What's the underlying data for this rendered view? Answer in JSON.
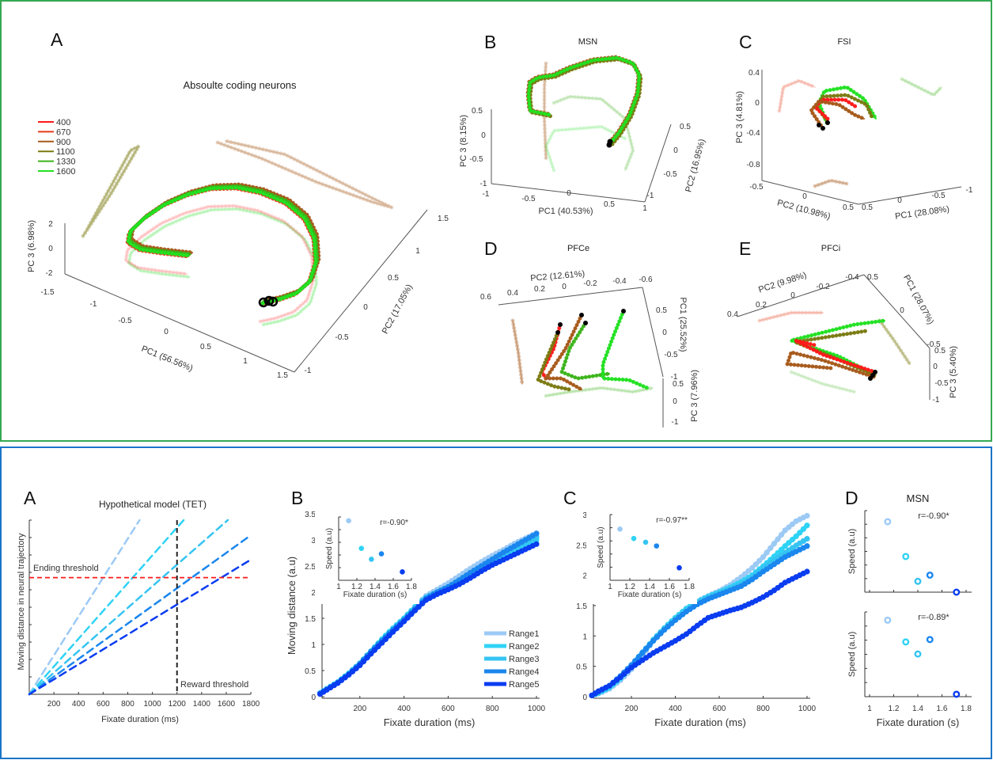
{
  "chart_data": [
    {
      "panel_label": "A",
      "type": "line",
      "title": "Absoulte coding neurons",
      "xlabel": "PC1 (56.56%)",
      "ylabel": "PC2 (17.05%)",
      "zlabel": "PC 3 (6.98%)",
      "x_ticks": [
        "-1.5",
        "-1",
        "-0.5",
        "0",
        "0.5",
        "1",
        "1.5"
      ],
      "y_ticks": [
        "-1",
        "-0.5",
        "0",
        "0.5",
        "1",
        "1.5"
      ],
      "z_ticks": [
        "2",
        "0",
        "-2"
      ],
      "legend": [
        "400",
        "670",
        "900",
        "1100",
        "1330",
        "1600"
      ],
      "legend_placement": "top-left",
      "series_colors": [
        "#ff1a1a",
        "#e63a1a",
        "#a65a1a",
        "#7a7a12",
        "#3cb31a",
        "#22e022"
      ]
    },
    {
      "panel_label": "B",
      "type": "line",
      "title": "MSN",
      "xlabel": "PC1 (40.53%)",
      "ylabel": "PC2 (16.95%)",
      "zlabel": "PC 3 (8.15%)",
      "x_ticks": [
        "-1",
        "-0.5",
        "0",
        "0.5",
        "1"
      ],
      "y_ticks": [
        "0.5",
        "0",
        "-0.5",
        "-1"
      ],
      "z_ticks": [
        "0.5",
        "0",
        "-0.5",
        "-1"
      ]
    },
    {
      "panel_label": "C",
      "type": "line",
      "title": "FSI",
      "xlabel": "PC1 (28.08%)",
      "ylabel": "PC2 (10.98%)",
      "zlabel": "PC 3 (4.81%)",
      "x_ticks": [
        "0.5",
        "0",
        "-0.5",
        "-1"
      ],
      "y_ticks": [
        "-0.5",
        "0",
        "0.5"
      ],
      "z_ticks": [
        "0.4",
        "0",
        "-0.4",
        "-0.8"
      ]
    },
    {
      "panel_label": "D",
      "type": "line",
      "title": "PFCe",
      "xlabel": "PC1 (25.52%)",
      "ylabel": "PC2 (12.61%)",
      "zlabel": "PC 3 (7.96%)",
      "x_ticks": [
        "0.5",
        "0",
        "-0.5",
        "-1"
      ],
      "y_ticks": [
        "0.6",
        "0.4",
        "0.2",
        "0",
        "-0.2",
        "-0.4",
        "-0.6"
      ],
      "z_ticks": [
        "0.5",
        "0",
        "-1"
      ]
    },
    {
      "panel_label": "E",
      "type": "line",
      "title": "PFCi",
      "xlabel": "PC1 (28.07%)",
      "ylabel": "PC2 (9.98%)",
      "zlabel": "PC 3 (5.40%)",
      "x_ticks": [
        "0.5",
        "0",
        "-0.5"
      ],
      "y_ticks": [
        "0.4",
        "0.2",
        "0",
        "-0.2",
        "-0.4"
      ],
      "z_ticks": [
        "0.5",
        "0",
        "-0.5",
        "-1"
      ]
    },
    {
      "panel_label": "A",
      "type": "line",
      "title": "Hypothetical model (TET)",
      "xlabel": "Fixate duration (ms)",
      "ylabel": "Moving distance in neural trajectory",
      "xlim": [
        0,
        1800
      ],
      "x_ticks": [
        200,
        400,
        600,
        800,
        1000,
        1200,
        1400,
        1600,
        1800
      ],
      "ending_threshold_label": "Ending threshold",
      "reward_threshold_label": "Reward threshold",
      "reward_threshold_ms": 1200,
      "threshold_crossing_ms": [
        600,
        840,
        1080,
        1320,
        1560
      ],
      "line_colors": [
        "#9ccaf5",
        "#2fd3f5",
        "#35c4f2",
        "#1a86ee",
        "#0a3cf0"
      ],
      "threshold_color": "#ff1a1a"
    },
    {
      "panel_label": "B",
      "type": "line",
      "xlabel": "Fixate duration (ms)",
      "ylabel": "Moving distance (a.u)",
      "xlim": [
        20,
        1000
      ],
      "ylim": [
        0,
        3.5
      ],
      "x_ticks": [
        200,
        400,
        600,
        800,
        1000
      ],
      "y_ticks": [
        0,
        0.5,
        1,
        1.5,
        2,
        2.5,
        3,
        3.5
      ],
      "legend_placement": "bottom-right",
      "x": [
        20,
        50,
        100,
        150,
        200,
        250,
        300,
        350,
        400,
        450,
        500,
        550,
        600,
        650,
        700,
        750,
        800,
        850,
        900,
        950,
        1000
      ],
      "series": [
        {
          "name": "Range1",
          "color": "#9ccaf5",
          "values": [
            0.07,
            0.15,
            0.28,
            0.44,
            0.63,
            0.86,
            1.08,
            1.29,
            1.5,
            1.72,
            1.93,
            2.05,
            2.17,
            2.31,
            2.45,
            2.58,
            2.7,
            2.81,
            2.93,
            3.03,
            3.13
          ]
        },
        {
          "name": "Range2",
          "color": "#2fd3f5",
          "values": [
            0.07,
            0.15,
            0.28,
            0.45,
            0.64,
            0.87,
            1.1,
            1.31,
            1.5,
            1.72,
            1.9,
            2.0,
            2.1,
            2.22,
            2.36,
            2.48,
            2.6,
            2.71,
            2.82,
            2.92,
            3.0
          ]
        },
        {
          "name": "Range3",
          "color": "#35c4f2",
          "values": [
            0.07,
            0.14,
            0.27,
            0.44,
            0.63,
            0.85,
            1.07,
            1.28,
            1.48,
            1.7,
            1.9,
            2.0,
            2.1,
            2.23,
            2.37,
            2.5,
            2.62,
            2.74,
            2.85,
            2.95,
            3.05
          ]
        },
        {
          "name": "Range4",
          "color": "#1a86ee",
          "values": [
            0.06,
            0.14,
            0.27,
            0.43,
            0.63,
            0.86,
            1.07,
            1.28,
            1.47,
            1.68,
            1.88,
            2.0,
            2.1,
            2.23,
            2.37,
            2.5,
            2.63,
            2.76,
            2.88,
            3.0,
            3.12
          ]
        },
        {
          "name": "Range5",
          "color": "#0a3cf0",
          "values": [
            0.05,
            0.13,
            0.26,
            0.42,
            0.6,
            0.82,
            1.03,
            1.24,
            1.44,
            1.65,
            1.85,
            1.96,
            2.05,
            2.15,
            2.27,
            2.4,
            2.52,
            2.62,
            2.72,
            2.82,
            2.92
          ]
        }
      ],
      "inset": {
        "type": "scatter",
        "xlabel": "Fixate duration (s)",
        "ylabel": "Speed (a.u)",
        "xlim": [
          1,
          1.8
        ],
        "x_ticks": [
          "1",
          "1.2",
          "1.4",
          "1.6",
          "1.8"
        ],
        "ylim": [
          0,
          1
        ],
        "annotation": "r=-0.90*",
        "x": [
          1.11,
          1.25,
          1.36,
          1.47,
          1.7
        ],
        "y": [
          0.99,
          0.53,
          0.35,
          0.44,
          0.14
        ]
      }
    },
    {
      "panel_label": "C",
      "type": "line",
      "xlabel": "Fixate duration (ms)",
      "xlim": [
        20,
        1000
      ],
      "ylim": [
        0,
        3
      ],
      "x_ticks": [
        200,
        400,
        600,
        800,
        1000
      ],
      "y_ticks": [
        0,
        0.5,
        1,
        1.5,
        2,
        2.5,
        3
      ],
      "x": [
        20,
        50,
        100,
        150,
        200,
        250,
        300,
        350,
        400,
        450,
        500,
        550,
        600,
        650,
        700,
        750,
        800,
        850,
        900,
        950,
        1000
      ],
      "series": [
        {
          "name": "Range1",
          "color": "#9ccaf5",
          "values": [
            0.02,
            0.05,
            0.13,
            0.27,
            0.45,
            0.68,
            0.92,
            1.12,
            1.3,
            1.45,
            1.57,
            1.66,
            1.74,
            1.84,
            1.97,
            2.12,
            2.3,
            2.52,
            2.74,
            2.89,
            2.98
          ]
        },
        {
          "name": "Range2",
          "color": "#2fd3f5",
          "values": [
            0.02,
            0.06,
            0.15,
            0.3,
            0.5,
            0.72,
            0.94,
            1.13,
            1.3,
            1.45,
            1.56,
            1.65,
            1.72,
            1.8,
            1.89,
            2.0,
            2.15,
            2.31,
            2.48,
            2.64,
            2.82
          ]
        },
        {
          "name": "Range3",
          "color": "#35c4f2",
          "values": [
            0.02,
            0.07,
            0.17,
            0.32,
            0.52,
            0.73,
            0.93,
            1.12,
            1.28,
            1.43,
            1.55,
            1.64,
            1.71,
            1.78,
            1.86,
            1.97,
            2.12,
            2.25,
            2.37,
            2.49,
            2.6
          ]
        },
        {
          "name": "Range4",
          "color": "#1a86ee",
          "values": [
            0.02,
            0.08,
            0.18,
            0.34,
            0.52,
            0.72,
            0.92,
            1.1,
            1.26,
            1.4,
            1.52,
            1.61,
            1.68,
            1.75,
            1.82,
            1.93,
            2.06,
            2.18,
            2.3,
            2.39,
            2.48
          ]
        },
        {
          "name": "Range5",
          "color": "#0a3cf0",
          "values": [
            0.02,
            0.09,
            0.18,
            0.32,
            0.48,
            0.6,
            0.72,
            0.82,
            0.92,
            1.03,
            1.17,
            1.3,
            1.36,
            1.42,
            1.47,
            1.55,
            1.64,
            1.75,
            1.88,
            1.97,
            2.06
          ]
        }
      ],
      "inset": {
        "type": "scatter",
        "xlabel": "Fixate duration (s)",
        "ylabel": "Speed (a.u)",
        "xlim": [
          1,
          1.8
        ],
        "x_ticks": [
          "1",
          "1.2",
          "1.4",
          "1.6",
          "1.8"
        ],
        "ylim": [
          0,
          1
        ],
        "annotation": "r=-0.97**",
        "x": [
          1.1,
          1.24,
          1.36,
          1.47,
          1.7
        ],
        "y": [
          0.82,
          0.67,
          0.61,
          0.55,
          0.2
        ]
      }
    },
    {
      "panel_label": "D",
      "type": "scatter",
      "title": "MSN",
      "xlabel": "Fixate duration (s)",
      "xlim": [
        1,
        1.8
      ],
      "x_ticks": [
        "1",
        "1.2",
        "1.4",
        "1.6",
        "1.8"
      ],
      "ylim": [
        0,
        1
      ],
      "point_colors": [
        "#9ccaf5",
        "#2fd3f5",
        "#35c4f2",
        "#1a86ee",
        "#0a3cf0"
      ],
      "subplots": [
        {
          "ylabel": "Speed (a.u)",
          "annotation": "r=-0.90*",
          "x": [
            1.15,
            1.3,
            1.4,
            1.5,
            1.72
          ],
          "y": [
            0.91,
            0.46,
            0.14,
            0.22,
            0.0
          ]
        },
        {
          "ylabel": "Speed (a.u)",
          "annotation": "r=-0.89*",
          "x": [
            1.15,
            1.3,
            1.4,
            1.5,
            1.72
          ],
          "y": [
            0.95,
            0.68,
            0.53,
            0.71,
            0.03
          ]
        }
      ]
    }
  ]
}
